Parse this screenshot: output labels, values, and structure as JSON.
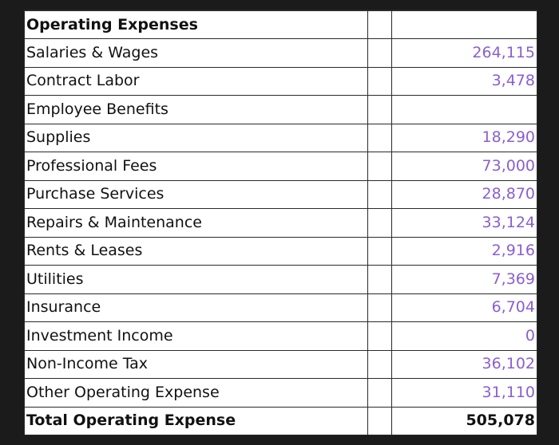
{
  "table": {
    "header": "Operating Expenses",
    "rows": [
      {
        "label": "Salaries & Wages",
        "value": "264,115"
      },
      {
        "label": "Contract Labor",
        "value": "3,478"
      },
      {
        "label": "Employee Benefits",
        "value": ""
      },
      {
        "label": "Supplies",
        "value": "18,290"
      },
      {
        "label": "Professional Fees",
        "value": "73,000"
      },
      {
        "label": "Purchase Services",
        "value": "28,870"
      },
      {
        "label": "Repairs & Maintenance",
        "value": "33,124"
      },
      {
        "label": "Rents & Leases",
        "value": "2,916"
      },
      {
        "label": "Utilities",
        "value": "7,369"
      },
      {
        "label": "Insurance",
        "value": "6,704"
      },
      {
        "label": "Investment Income",
        "value": "0"
      },
      {
        "label": "Non-Income Tax",
        "value": "36,102"
      },
      {
        "label": "Other Operating Expense",
        "value": "31,110"
      }
    ],
    "total": {
      "label": "Total Operating Expense",
      "value": "505,078"
    }
  },
  "colors": {
    "value_text": "#8a5fd0",
    "background": "#1b1b1b"
  }
}
